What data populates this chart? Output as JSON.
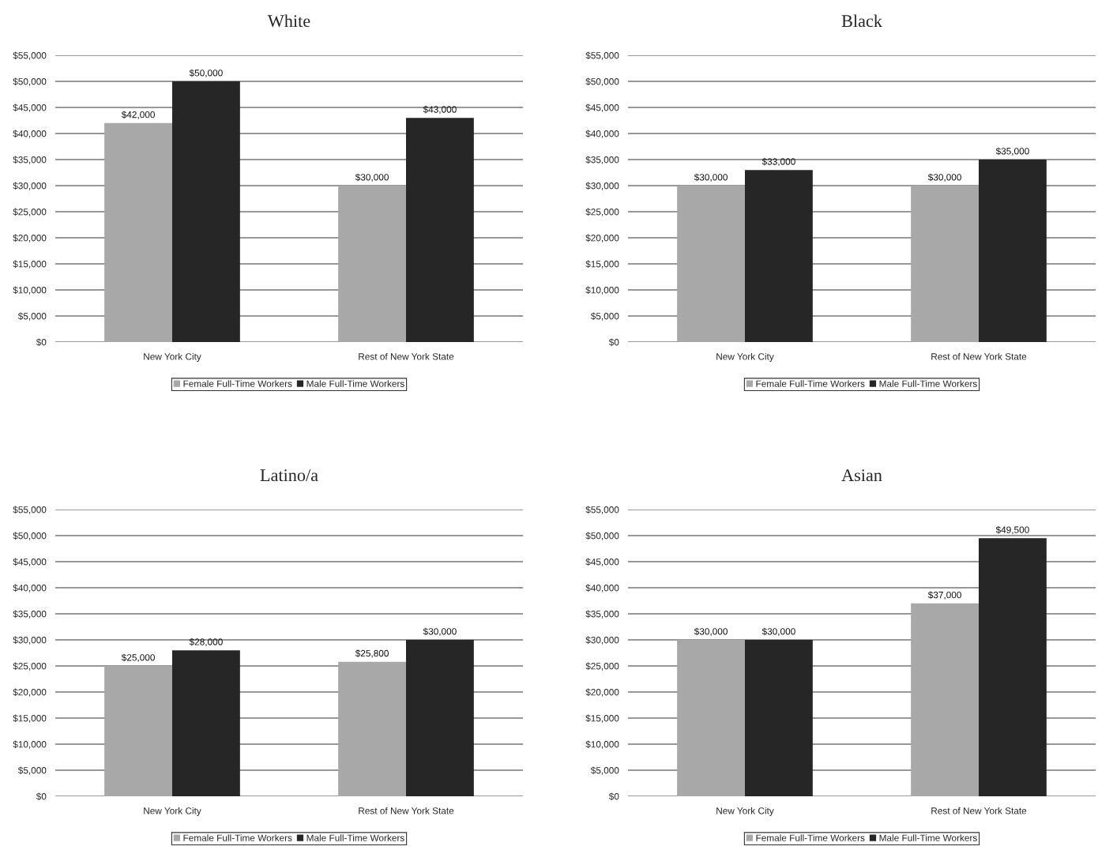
{
  "chart_data": [
    {
      "type": "bar",
      "title": "White",
      "categories": [
        "New York City",
        "Rest of New York State"
      ],
      "series": [
        {
          "name": "Female Full-Time Workers",
          "color": "#a8a8a8",
          "values": [
            42000,
            30000
          ],
          "value_labels": [
            "$42,000",
            "$30,000"
          ]
        },
        {
          "name": "Male Full-Time Workers",
          "color": "#262626",
          "values": [
            50000,
            43000
          ],
          "value_labels": [
            "$50,000",
            "$43,000"
          ]
        }
      ],
      "ylim": [
        0,
        55000
      ],
      "yticks": [
        {
          "value": 0,
          "label": "$0"
        },
        {
          "value": 5000,
          "label": "$5,000"
        },
        {
          "value": 10000,
          "label": "$10,000"
        },
        {
          "value": 15000,
          "label": "$15,000"
        },
        {
          "value": 20000,
          "label": "$20,000"
        },
        {
          "value": 25000,
          "label": "$25,000"
        },
        {
          "value": 30000,
          "label": "$30,000"
        },
        {
          "value": 35000,
          "label": "$35,000"
        },
        {
          "value": 40000,
          "label": "$40,000"
        },
        {
          "value": 45000,
          "label": "$45,000"
        },
        {
          "value": 50000,
          "label": "$50,000"
        },
        {
          "value": 55000,
          "label": "$55,000"
        }
      ],
      "grid": "y",
      "legend": "bottom"
    },
    {
      "type": "bar",
      "title": "Black",
      "categories": [
        "New York City",
        "Rest of New York State"
      ],
      "series": [
        {
          "name": "Female Full-Time Workers",
          "color": "#a8a8a8",
          "values": [
            30000,
            30000
          ],
          "value_labels": [
            "$30,000",
            "$30,000"
          ]
        },
        {
          "name": "Male Full-Time Workers",
          "color": "#262626",
          "values": [
            33000,
            35000
          ],
          "value_labels": [
            "$33,000",
            "$35,000"
          ]
        }
      ],
      "ylim": [
        0,
        55000
      ],
      "yticks": [
        {
          "value": 0,
          "label": "$0"
        },
        {
          "value": 5000,
          "label": "$5,000"
        },
        {
          "value": 10000,
          "label": "$10,000"
        },
        {
          "value": 15000,
          "label": "$15,000"
        },
        {
          "value": 20000,
          "label": "$20,000"
        },
        {
          "value": 25000,
          "label": "$25,000"
        },
        {
          "value": 30000,
          "label": "$30,000"
        },
        {
          "value": 35000,
          "label": "$35,000"
        },
        {
          "value": 40000,
          "label": "$40,000"
        },
        {
          "value": 45000,
          "label": "$45,000"
        },
        {
          "value": 50000,
          "label": "$50,000"
        },
        {
          "value": 55000,
          "label": "$55,000"
        }
      ],
      "grid": "y",
      "legend": "bottom"
    },
    {
      "type": "bar",
      "title": "Latino/a",
      "categories": [
        "New York City",
        "Rest of New York State"
      ],
      "series": [
        {
          "name": "Female Full-Time Workers",
          "color": "#a8a8a8",
          "values": [
            25000,
            25800
          ],
          "value_labels": [
            "$25,000",
            "$25,800"
          ]
        },
        {
          "name": "Male Full-Time Workers",
          "color": "#262626",
          "values": [
            28000,
            30000
          ],
          "value_labels": [
            "$28,000",
            "$30,000"
          ]
        }
      ],
      "ylim": [
        0,
        55000
      ],
      "yticks": [
        {
          "value": 0,
          "label": "$0"
        },
        {
          "value": 5000,
          "label": "$5,000"
        },
        {
          "value": 10000,
          "label": "$10,000"
        },
        {
          "value": 15000,
          "label": "$15,000"
        },
        {
          "value": 20000,
          "label": "$20,000"
        },
        {
          "value": 25000,
          "label": "$25,000"
        },
        {
          "value": 30000,
          "label": "$30,000"
        },
        {
          "value": 35000,
          "label": "$35,000"
        },
        {
          "value": 40000,
          "label": "$40,000"
        },
        {
          "value": 45000,
          "label": "$45,000"
        },
        {
          "value": 50000,
          "label": "$50,000"
        },
        {
          "value": 55000,
          "label": "$55,000"
        }
      ],
      "grid": "y",
      "legend": "bottom"
    },
    {
      "type": "bar",
      "title": "Asian",
      "categories": [
        "New York City",
        "Rest of New York State"
      ],
      "series": [
        {
          "name": "Female Full-Time Workers",
          "color": "#a8a8a8",
          "values": [
            30000,
            37000
          ],
          "value_labels": [
            "$30,000",
            "$37,000"
          ]
        },
        {
          "name": "Male Full-Time Workers",
          "color": "#262626",
          "values": [
            30000,
            49500
          ],
          "value_labels": [
            "$30,000",
            "$49,500"
          ]
        }
      ],
      "ylim": [
        0,
        55000
      ],
      "yticks": [
        {
          "value": 0,
          "label": "$0"
        },
        {
          "value": 5000,
          "label": "$5,000"
        },
        {
          "value": 10000,
          "label": "$10,000"
        },
        {
          "value": 15000,
          "label": "$15,000"
        },
        {
          "value": 20000,
          "label": "$20,000"
        },
        {
          "value": 25000,
          "label": "$25,000"
        },
        {
          "value": 30000,
          "label": "$30,000"
        },
        {
          "value": 35000,
          "label": "$35,000"
        },
        {
          "value": 40000,
          "label": "$40,000"
        },
        {
          "value": 45000,
          "label": "$45,000"
        },
        {
          "value": 50000,
          "label": "$50,000"
        },
        {
          "value": 55000,
          "label": "$55,000"
        }
      ],
      "grid": "y",
      "legend": "bottom"
    }
  ]
}
